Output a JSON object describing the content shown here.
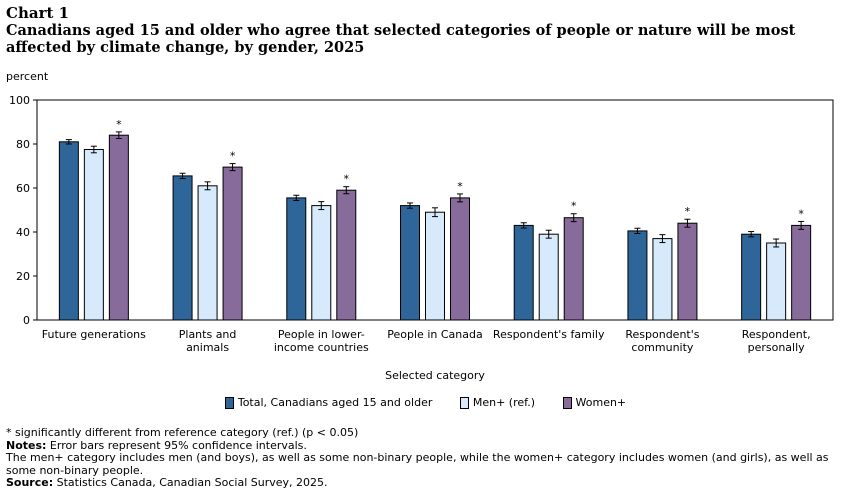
{
  "header": {
    "chart_label": "Chart 1",
    "title": "Canadians aged 15 and older who agree that selected categories of people or nature will be most affected by climate change, by gender, 2025",
    "unit": "percent"
  },
  "colors": {
    "total": "#2f6699",
    "men": "#d6eafc",
    "women": "#876b9a"
  },
  "chart_data": {
    "type": "bar",
    "title": "Canadians aged 15 and older who agree that selected categories of people or nature will be most affected by climate change, by gender, 2025",
    "xlabel": "Selected category",
    "ylabel": "percent",
    "ylim": [
      0,
      100
    ],
    "yticks": [
      0,
      20,
      40,
      60,
      80,
      100
    ],
    "grid": false,
    "legend_position": "bottom",
    "categories": [
      [
        "Future generations"
      ],
      [
        "Plants and",
        "animals"
      ],
      [
        "People in lower-",
        "income countries"
      ],
      [
        "People in Canada"
      ],
      [
        "Respondent's family"
      ],
      [
        "Respondent's",
        "community"
      ],
      [
        "Respondent,",
        "personally"
      ]
    ],
    "series": [
      {
        "name": "Total, Canadians aged 15 and older",
        "color": "#2f6699",
        "values": [
          81,
          65.5,
          55.5,
          52,
          43,
          40.5,
          39
        ],
        "errors": [
          1,
          1.2,
          1.2,
          1.2,
          1.2,
          1.2,
          1.2
        ],
        "significant": [
          false,
          false,
          false,
          false,
          false,
          false,
          false
        ]
      },
      {
        "name": "Men+ (ref.)",
        "color": "#d6eafc",
        "values": [
          77.5,
          61,
          52,
          49,
          39,
          37,
          35
        ],
        "errors": [
          1.5,
          1.8,
          1.8,
          2,
          1.8,
          1.8,
          1.8
        ],
        "significant": [
          false,
          false,
          false,
          false,
          false,
          false,
          false
        ]
      },
      {
        "name": "Women+",
        "color": "#876b9a",
        "values": [
          84,
          69.5,
          59,
          55.5,
          46.5,
          44,
          43
        ],
        "errors": [
          1.5,
          1.6,
          1.6,
          1.8,
          1.8,
          1.8,
          1.8
        ],
        "significant": [
          true,
          true,
          true,
          true,
          true,
          true,
          true
        ]
      }
    ],
    "significance_marker": "*"
  },
  "footer": {
    "significance_note": "* significantly different from reference category (ref.) (p < 0.05)",
    "notes_label": "Notes:",
    "notes_text": " Error bars represent 95% confidence intervals.",
    "category_note": "The men+ category includes men (and boys), as well as some non-binary people, while the women+ category includes women (and girls), as well as some non-binary people.",
    "source_label": "Source:",
    "source_text": " Statistics Canada, Canadian Social Survey, 2025."
  }
}
